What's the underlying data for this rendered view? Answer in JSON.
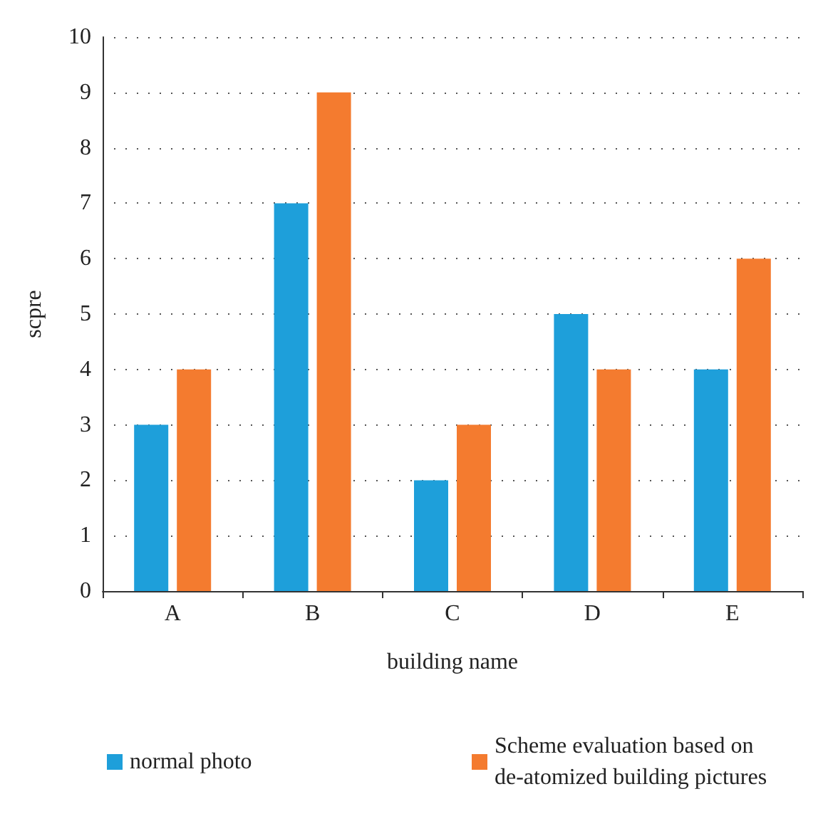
{
  "chart_data": {
    "type": "bar",
    "xlabel": "building name",
    "ylabel": "scpre",
    "categories": [
      "A",
      "B",
      "C",
      "D",
      "E"
    ],
    "series": [
      {
        "name": "normal photo",
        "color": "#1e9fda",
        "values": [
          3,
          7,
          2,
          5,
          4
        ]
      },
      {
        "name": "Scheme evaluation based on de-atomized building pictures",
        "color": "#f47b2f",
        "values": [
          4,
          9,
          3,
          4,
          6
        ]
      }
    ],
    "ylim": [
      0,
      10
    ],
    "yticks": [
      0,
      1,
      2,
      3,
      4,
      5,
      6,
      7,
      8,
      9,
      10
    ],
    "grid": "y",
    "legend": "bottom left"
  }
}
